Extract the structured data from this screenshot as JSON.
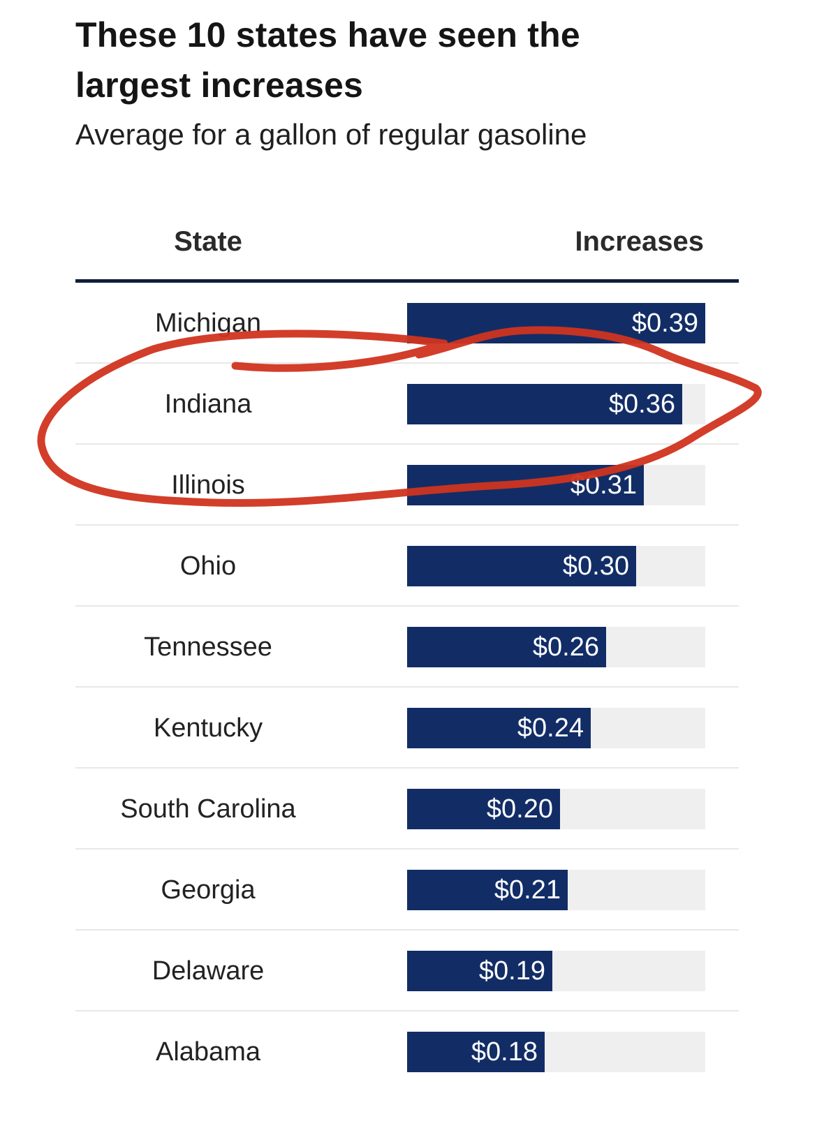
{
  "chart_data": {
    "type": "bar",
    "title": "These 10 states have seen the largest increases",
    "subtitle": "Average for a gallon of regular gasoline",
    "column_headers": {
      "category": "State",
      "value": "Increases"
    },
    "categories": [
      "Michigan",
      "Indiana",
      "Illinois",
      "Ohio",
      "Tennessee",
      "Kentucky",
      "South Carolina",
      "Georgia",
      "Delaware",
      "Alabama"
    ],
    "values": [
      0.39,
      0.36,
      0.31,
      0.3,
      0.26,
      0.24,
      0.2,
      0.21,
      0.19,
      0.18
    ],
    "value_labels": [
      "$0.39",
      "$0.36",
      "$0.31",
      "$0.30",
      "$0.26",
      "$0.24",
      "$0.20",
      "$0.21",
      "$0.19",
      "$0.18"
    ],
    "xlim": [
      0,
      0.39
    ],
    "orientation": "horizontal",
    "grid": false,
    "colors": {
      "bar": "#122d66",
      "track": "#efefef",
      "annotation": "#d0341f"
    }
  },
  "annotation": {
    "type": "hand-drawn-circle",
    "highlights": "Indiana",
    "color": "#d0341f"
  }
}
